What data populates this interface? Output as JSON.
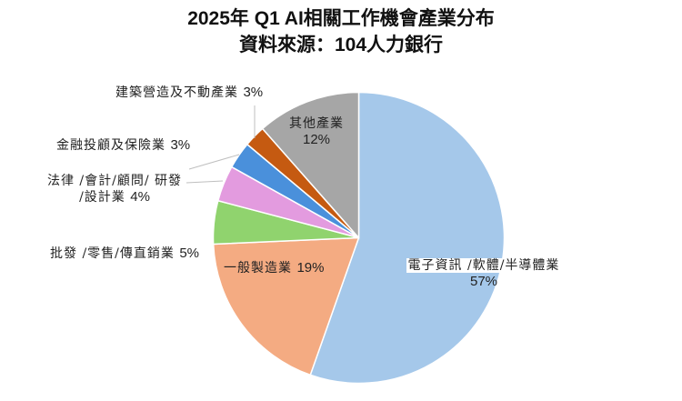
{
  "title": {
    "line1": "2025年 Q1 AI相關工作機會產業分布",
    "line2": "資料來源：104人力銀行"
  },
  "chart_data": {
    "type": "pie",
    "title": "2025年 Q1 AI相關工作機會產業分布",
    "subtitle": "資料來源：104人力銀行",
    "start_angle": "12 o'clock, clockwise",
    "legend": "none (data labels on/around slices)",
    "slices": [
      {
        "label": "電子資訊/軟體/半導體業",
        "value": 57,
        "estimated_share": 55.4,
        "color": "#A5C8EA"
      },
      {
        "label": "一般製造業",
        "value": 19,
        "estimated_share": 18.9,
        "color": "#F4AB82"
      },
      {
        "label": "批發/零售/傳直銷業",
        "value": 5,
        "estimated_share": 4.8,
        "color": "#90D36E"
      },
      {
        "label": "法律/會計/顧問/研發/設計業",
        "value": 4,
        "estimated_share": 4.0,
        "color": "#E39BDF"
      },
      {
        "label": "金融投顧及保險業",
        "value": 3,
        "estimated_share": 3.0,
        "color": "#4A90DB"
      },
      {
        "label": "建築營造及不動產業",
        "value": 3,
        "estimated_share": 2.4,
        "color": "#C55A11"
      },
      {
        "label": "其他產業",
        "value": 12,
        "estimated_share": 11.5,
        "color": "#A6A6A6"
      }
    ]
  },
  "labels": {
    "electronics": {
      "line1": "電子資訊 /軟體/半導體業",
      "pct": "57%"
    },
    "manufacturing": {
      "text": "一般製造業 ",
      "pct": "19%"
    },
    "wholesale": {
      "text": "批發 /零售/傳直銷業 ",
      "pct": "5%"
    },
    "legal": {
      "line1": "法律 /會計/顧問/ 研發",
      "line2": "/設計業 ",
      "pct": "4%"
    },
    "finance": {
      "text": "金融投顧及保險業 ",
      "pct": "3%"
    },
    "construction": {
      "text": "建築營造及不動產業 ",
      "pct": "3%"
    },
    "other": {
      "line1": "其他產業",
      "pct": "12%"
    }
  }
}
